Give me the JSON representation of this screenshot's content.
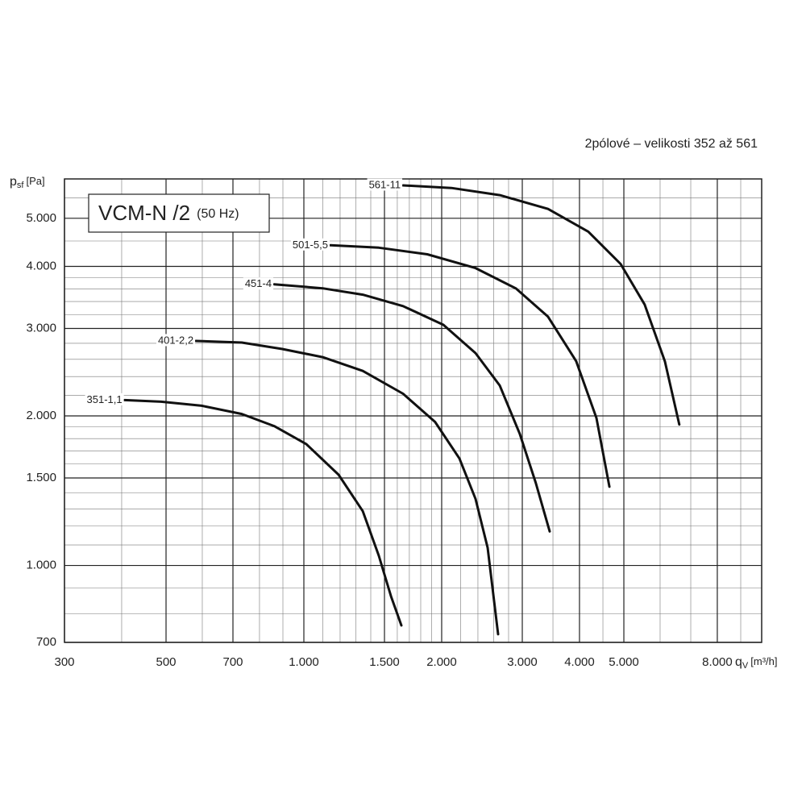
{
  "chart_data": {
    "type": "line",
    "title": "VCM-N /2",
    "title_note": "(50 Hz)",
    "subtitle": "2pólové – velikosti 352 až 561",
    "y_label": {
      "main": "p",
      "sub": "sf",
      "unit": "[Pa]"
    },
    "x_label": {
      "main": "q",
      "sub": "V",
      "unit": "[m³/h]"
    },
    "xscale": "log",
    "yscale": "log",
    "grid": true,
    "xlim": [
      300,
      10000
    ],
    "ylim": [
      700,
      6000
    ],
    "xticks": [
      300,
      500,
      700,
      {
        "value": 1000,
        "label": "1.000"
      },
      {
        "value": 1500,
        "label": "1.500"
      },
      {
        "value": 2000,
        "label": "2.000"
      },
      {
        "value": 3000,
        "label": "3.000"
      },
      {
        "value": 4000,
        "label": "4.000"
      },
      {
        "value": 5000,
        "label": "5.000"
      },
      {
        "value": 8000,
        "label": "8.000"
      }
    ],
    "yticks": [
      700,
      {
        "value": 1000,
        "label": "1.000"
      },
      {
        "value": 1500,
        "label": "1.500"
      },
      {
        "value": 2000,
        "label": "2.000"
      },
      {
        "value": 3000,
        "label": "3.000"
      },
      {
        "value": 4000,
        "label": "4.000"
      },
      {
        "value": 5000,
        "label": "5.000"
      }
    ],
    "x_minor_grid": [
      400,
      600,
      800,
      900,
      1100,
      1200,
      1300,
      1400,
      1600,
      1700,
      1800,
      1900,
      2200,
      2400,
      2600,
      2800,
      3500,
      4500,
      6000,
      7000,
      9000
    ],
    "y_minor_grid": [
      800,
      900,
      1100,
      1200,
      1300,
      1400,
      1600,
      1700,
      1800,
      1900,
      2200,
      2400,
      2600,
      2800,
      3200,
      3400,
      3600,
      3800,
      4500,
      5500
    ],
    "series": [
      {
        "name": "351-1,1",
        "color": "#111111",
        "x": [
          406,
          488,
          598,
          732,
          861,
          1012,
          1191,
          1345,
          1458,
          1550,
          1633
        ],
        "values": [
          2152,
          2136,
          2097,
          2018,
          1908,
          1756,
          1523,
          1286,
          1046,
          867,
          757
        ]
      },
      {
        "name": "401-2,2",
        "color": "#111111",
        "x": [
          581,
          732,
          897,
          1099,
          1345,
          1647,
          1935,
          2187,
          2371,
          2520,
          2656
        ],
        "values": [
          2831,
          2810,
          2727,
          2626,
          2464,
          2217,
          1945,
          1642,
          1361,
          1086,
          727
        ]
      },
      {
        "name": "451-4",
        "color": "#111111",
        "x": [
          861,
          1099,
          1345,
          1647,
          2017,
          2371,
          2679,
          2964,
          3210,
          3443
        ],
        "values": [
          3682,
          3614,
          3508,
          3327,
          3051,
          2676,
          2302,
          1838,
          1467,
          1171
        ]
      },
      {
        "name": "501-5,5",
        "color": "#111111",
        "x": [
          1143,
          1458,
          1860,
          2371,
          2904,
          3414,
          3935,
          4356,
          4650
        ],
        "values": [
          4411,
          4362,
          4231,
          3969,
          3613,
          3168,
          2577,
          1981,
          1440
        ]
      },
      {
        "name": "561-11",
        "color": "#111111",
        "x": [
          1647,
          2100,
          2679,
          3414,
          4181,
          4920,
          5550,
          6145,
          6607
        ],
        "values": [
          5823,
          5755,
          5566,
          5222,
          4700,
          4045,
          3352,
          2577,
          1922
        ]
      }
    ]
  }
}
